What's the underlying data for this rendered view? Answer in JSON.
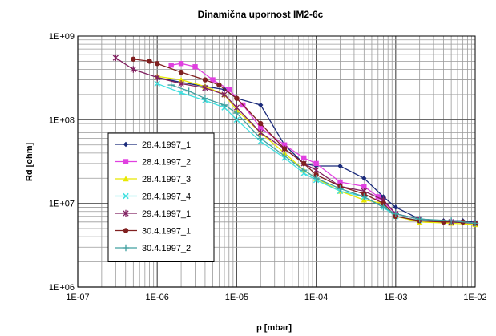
{
  "chart_data": {
    "type": "line",
    "title": "Dinamična upornost IM2-6c",
    "xlabel": "p [mbar]",
    "ylabel": "Rd [ohm]",
    "x_scale": "log",
    "y_scale": "log",
    "xlim": [
      1e-07,
      0.01
    ],
    "ylim": [
      1000000.0,
      1000000000.0
    ],
    "x_ticks": [
      "1E-07",
      "1E-06",
      "1E-05",
      "1E-04",
      "1E-03",
      "1E-02"
    ],
    "y_ticks": [
      "1E+09",
      "1E+08",
      "1E+07",
      "1E+06"
    ],
    "grid": true,
    "legend_position": "left",
    "series": [
      {
        "name": "28.4.1997_1",
        "color": "#1a2a7a",
        "marker": "diamond",
        "points": [
          [
            1e-06,
            320000000.0
          ],
          [
            2e-06,
            280000000.0
          ],
          [
            4e-06,
            250000000.0
          ],
          [
            7e-06,
            230000000.0
          ],
          [
            1e-05,
            180000000.0
          ],
          [
            2e-05,
            150000000.0
          ],
          [
            4e-05,
            50000000.0
          ],
          [
            7e-05,
            30000000.0
          ],
          [
            0.0001,
            28000000.0
          ],
          [
            0.0002,
            28000000.0
          ],
          [
            0.0004,
            20000000.0
          ],
          [
            0.0007,
            12000000.0
          ],
          [
            0.001,
            9000000.0
          ],
          [
            0.002,
            6500000.0
          ],
          [
            0.004,
            6200000.0
          ],
          [
            0.007,
            6200000.0
          ],
          [
            0.01,
            6000000.0
          ]
        ]
      },
      {
        "name": "28.4.1997_2",
        "color": "#e040e0",
        "marker": "square",
        "points": [
          [
            1.5e-06,
            450000000.0
          ],
          [
            2e-06,
            470000000.0
          ],
          [
            3e-06,
            430000000.0
          ],
          [
            5e-06,
            300000000.0
          ],
          [
            8e-06,
            230000000.0
          ],
          [
            1.2e-05,
            150000000.0
          ],
          [
            2e-05,
            80000000.0
          ],
          [
            4e-05,
            50000000.0
          ],
          [
            7e-05,
            35000000.0
          ],
          [
            0.0001,
            30000000.0
          ],
          [
            0.0002,
            18000000.0
          ],
          [
            0.0004,
            16000000.0
          ],
          [
            0.0006,
            12000000.0
          ],
          [
            0.001,
            7500000.0
          ],
          [
            0.002,
            6500000.0
          ],
          [
            0.005,
            6000000.0
          ],
          [
            0.01,
            5800000.0
          ]
        ]
      },
      {
        "name": "28.4.1997_3",
        "color": "#e8e800",
        "marker": "triangle",
        "points": [
          [
            1e-06,
            330000000.0
          ],
          [
            2e-06,
            300000000.0
          ],
          [
            4e-06,
            250000000.0
          ],
          [
            7e-06,
            200000000.0
          ],
          [
            1e-05,
            130000000.0
          ],
          [
            2e-05,
            70000000.0
          ],
          [
            4e-05,
            40000000.0
          ],
          [
            7e-05,
            25000000.0
          ],
          [
            0.0001,
            20000000.0
          ],
          [
            0.0002,
            14000000.0
          ],
          [
            0.0004,
            11000000.0
          ],
          [
            0.0007,
            10000000.0
          ],
          [
            0.001,
            7000000.0
          ],
          [
            0.002,
            6000000.0
          ],
          [
            0.005,
            5800000.0
          ],
          [
            0.01,
            5600000.0
          ]
        ]
      },
      {
        "name": "28.4.1997_4",
        "color": "#40e0e0",
        "marker": "x",
        "points": [
          [
            1e-06,
            270000000.0
          ],
          [
            2e-06,
            210000000.0
          ],
          [
            4e-06,
            170000000.0
          ],
          [
            7e-06,
            140000000.0
          ],
          [
            1e-05,
            100000000.0
          ],
          [
            2e-05,
            55000000.0
          ],
          [
            4e-05,
            35000000.0
          ],
          [
            7e-05,
            23000000.0
          ],
          [
            0.0001,
            19000000.0
          ],
          [
            0.0002,
            14000000.0
          ],
          [
            0.0004,
            12000000.0
          ],
          [
            0.0007,
            9000000.0
          ],
          [
            0.001,
            7000000.0
          ],
          [
            0.002,
            6300000.0
          ],
          [
            0.005,
            6000000.0
          ],
          [
            0.01,
            5800000.0
          ]
        ]
      },
      {
        "name": "29.4.1997_1",
        "color": "#802060",
        "marker": "star",
        "points": [
          [
            3e-07,
            550000000.0
          ],
          [
            5e-07,
            400000000.0
          ],
          [
            1e-06,
            320000000.0
          ],
          [
            2e-06,
            270000000.0
          ],
          [
            4e-06,
            240000000.0
          ],
          [
            7e-06,
            200000000.0
          ],
          [
            1e-05,
            140000000.0
          ],
          [
            2e-05,
            70000000.0
          ],
          [
            4e-05,
            45000000.0
          ],
          [
            7e-05,
            30000000.0
          ],
          [
            0.0001,
            25000000.0
          ],
          [
            0.0002,
            16000000.0
          ],
          [
            0.0004,
            14000000.0
          ],
          [
            0.0007,
            11000000.0
          ],
          [
            0.001,
            7500000.0
          ],
          [
            0.002,
            6500000.0
          ],
          [
            0.005,
            6000000.0
          ],
          [
            0.01,
            5800000.0
          ]
        ]
      },
      {
        "name": "30.4.1997_1",
        "color": "#802020",
        "marker": "circle",
        "points": [
          [
            5e-07,
            530000000.0
          ],
          [
            8e-07,
            500000000.0
          ],
          [
            1e-06,
            470000000.0
          ],
          [
            2e-06,
            370000000.0
          ],
          [
            4e-06,
            300000000.0
          ],
          [
            6e-06,
            260000000.0
          ],
          [
            1e-05,
            180000000.0
          ],
          [
            2e-05,
            90000000.0
          ],
          [
            4e-05,
            45000000.0
          ],
          [
            7e-05,
            30000000.0
          ],
          [
            0.0001,
            22000000.0
          ],
          [
            0.0002,
            16000000.0
          ],
          [
            0.0004,
            13000000.0
          ],
          [
            0.0007,
            10000000.0
          ],
          [
            0.001,
            7000000.0
          ],
          [
            0.002,
            6200000.0
          ],
          [
            0.004,
            6000000.0
          ],
          [
            0.007,
            6000000.0
          ],
          [
            0.01,
            5800000.0
          ]
        ]
      },
      {
        "name": "30.4.1997_2",
        "color": "#40a0a0",
        "marker": "plus",
        "points": [
          [
            1.5e-06,
            260000000.0
          ],
          [
            2.5e-06,
            220000000.0
          ],
          [
            4e-06,
            180000000.0
          ],
          [
            7e-06,
            150000000.0
          ],
          [
            1e-05,
            120000000.0
          ],
          [
            2e-05,
            60000000.0
          ],
          [
            4e-05,
            37000000.0
          ],
          [
            7e-05,
            25000000.0
          ],
          [
            0.0001,
            20000000.0
          ],
          [
            0.0002,
            15000000.0
          ],
          [
            0.0004,
            12000000.0
          ],
          [
            0.0007,
            9000000.0
          ],
          [
            0.001,
            7500000.0
          ],
          [
            0.002,
            6500000.0
          ],
          [
            0.005,
            6200000.0
          ],
          [
            0.01,
            5800000.0
          ]
        ]
      }
    ]
  }
}
